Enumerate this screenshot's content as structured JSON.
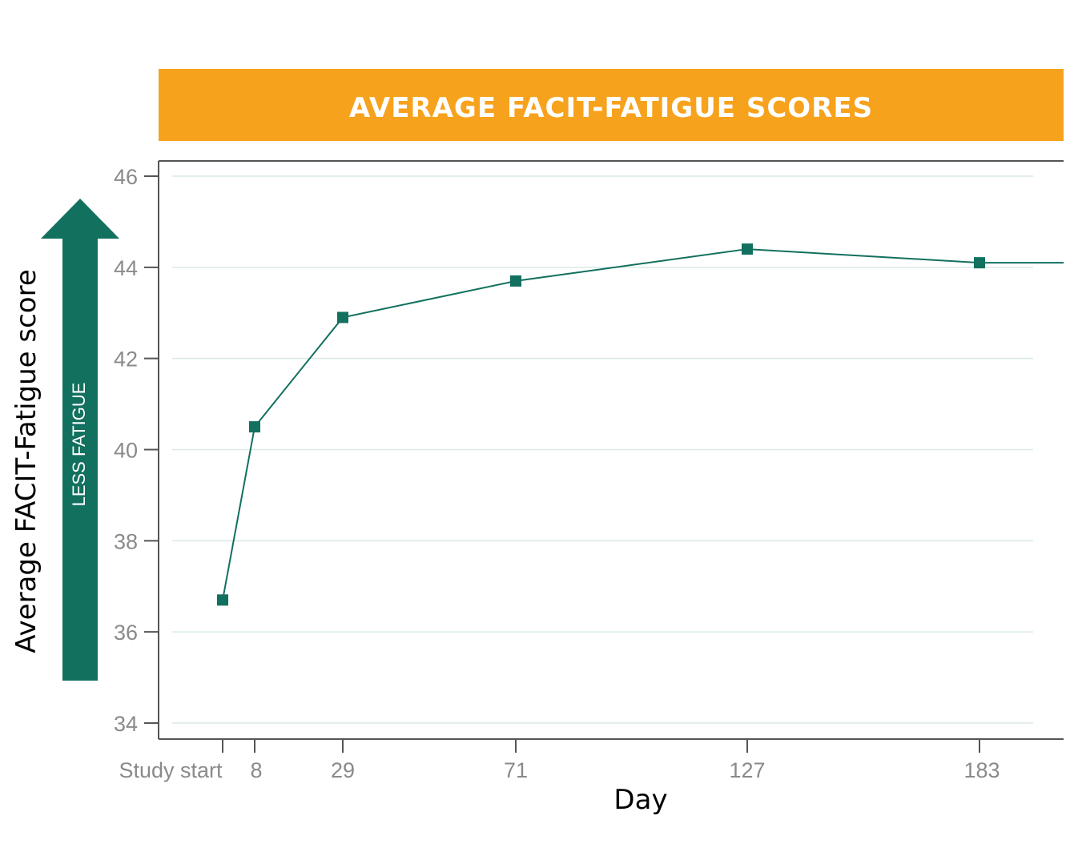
{
  "chart_data": {
    "type": "line",
    "title": "AVERAGE FACIT-FATIGUE SCORES",
    "xlabel": "Day",
    "ylabel": "Average FACIT-Fatigue score",
    "annotation": "LESS FATIGUE",
    "x_tick_labels": [
      "Study start",
      "8",
      "29",
      "71",
      "127",
      "183"
    ],
    "y_ticks": [
      34,
      36,
      38,
      40,
      42,
      44,
      46
    ],
    "ylim": [
      34,
      46
    ],
    "grid": true,
    "series": [
      {
        "x": [
          "Study start",
          "8",
          "29",
          "71",
          "127",
          "183"
        ],
        "values": [
          36.7,
          40.5,
          42.9,
          43.7,
          44.4,
          44.1
        ]
      }
    ],
    "line_continues_right": true,
    "colors": {
      "banner": "#f7a21c",
      "series": "#12705f",
      "arrow": "#12705f",
      "gridline": "#d9e9e6",
      "axis": "#555555",
      "tick_text": "#8a8a8a"
    }
  }
}
